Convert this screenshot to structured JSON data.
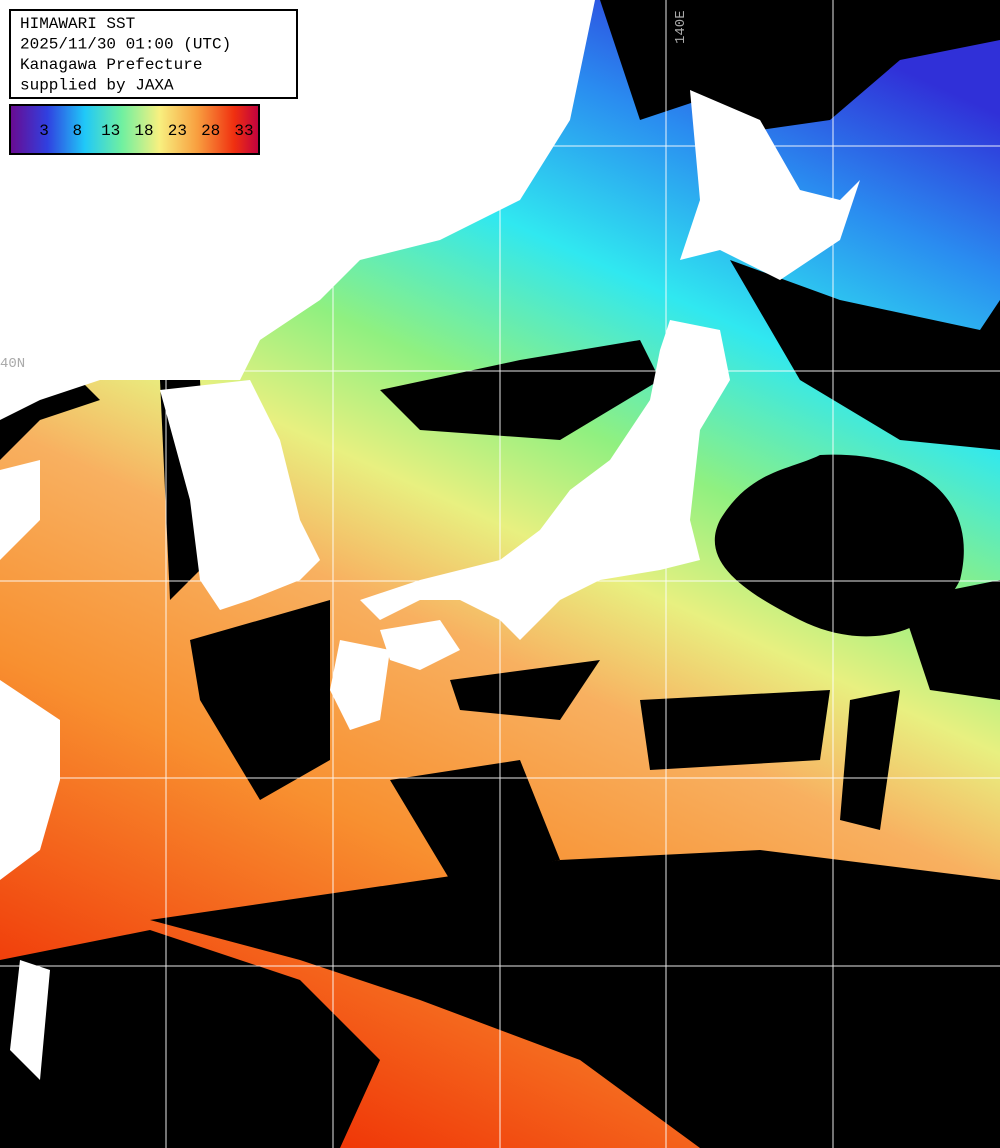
{
  "header": {
    "lines": [
      "HIMAWARI SST",
      "2025/11/30 01:00 (UTC)",
      "Kanagawa Prefecture",
      "supplied by JAXA"
    ]
  },
  "colorbar": {
    "ticks": [
      3,
      8,
      13,
      18,
      23,
      28,
      33
    ]
  },
  "grid_labels": {
    "longitude": "140E",
    "latitude": "40N"
  }
}
